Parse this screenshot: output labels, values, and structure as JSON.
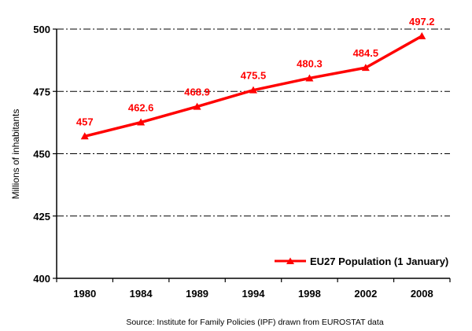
{
  "chart_data": {
    "type": "line",
    "categories": [
      "1980",
      "1984",
      "1989",
      "1994",
      "1998",
      "2002",
      "2008"
    ],
    "series": [
      {
        "name": "EU27 Population (1 January)",
        "values": [
          457,
          462.6,
          468.9,
          475.5,
          480.3,
          484.5,
          497.2
        ],
        "color": "#ff0000",
        "marker": "triangle"
      }
    ],
    "data_labels": [
      "457",
      "462.6",
      "468.9",
      "475.5",
      "480.3",
      "484.5",
      "497.2"
    ],
    "ylabel": "Millions of inhabitants",
    "ylim": [
      400,
      500
    ],
    "yticks": [
      "400",
      "425",
      "450",
      "475",
      "500"
    ],
    "grid": "horizontal dash-dot",
    "legend": {
      "position": "bottom-right",
      "label": "EU27 Population (1 January)"
    },
    "source": "Source: Institute for Family Policies (IPF) drawn from EUROSTAT data"
  }
}
